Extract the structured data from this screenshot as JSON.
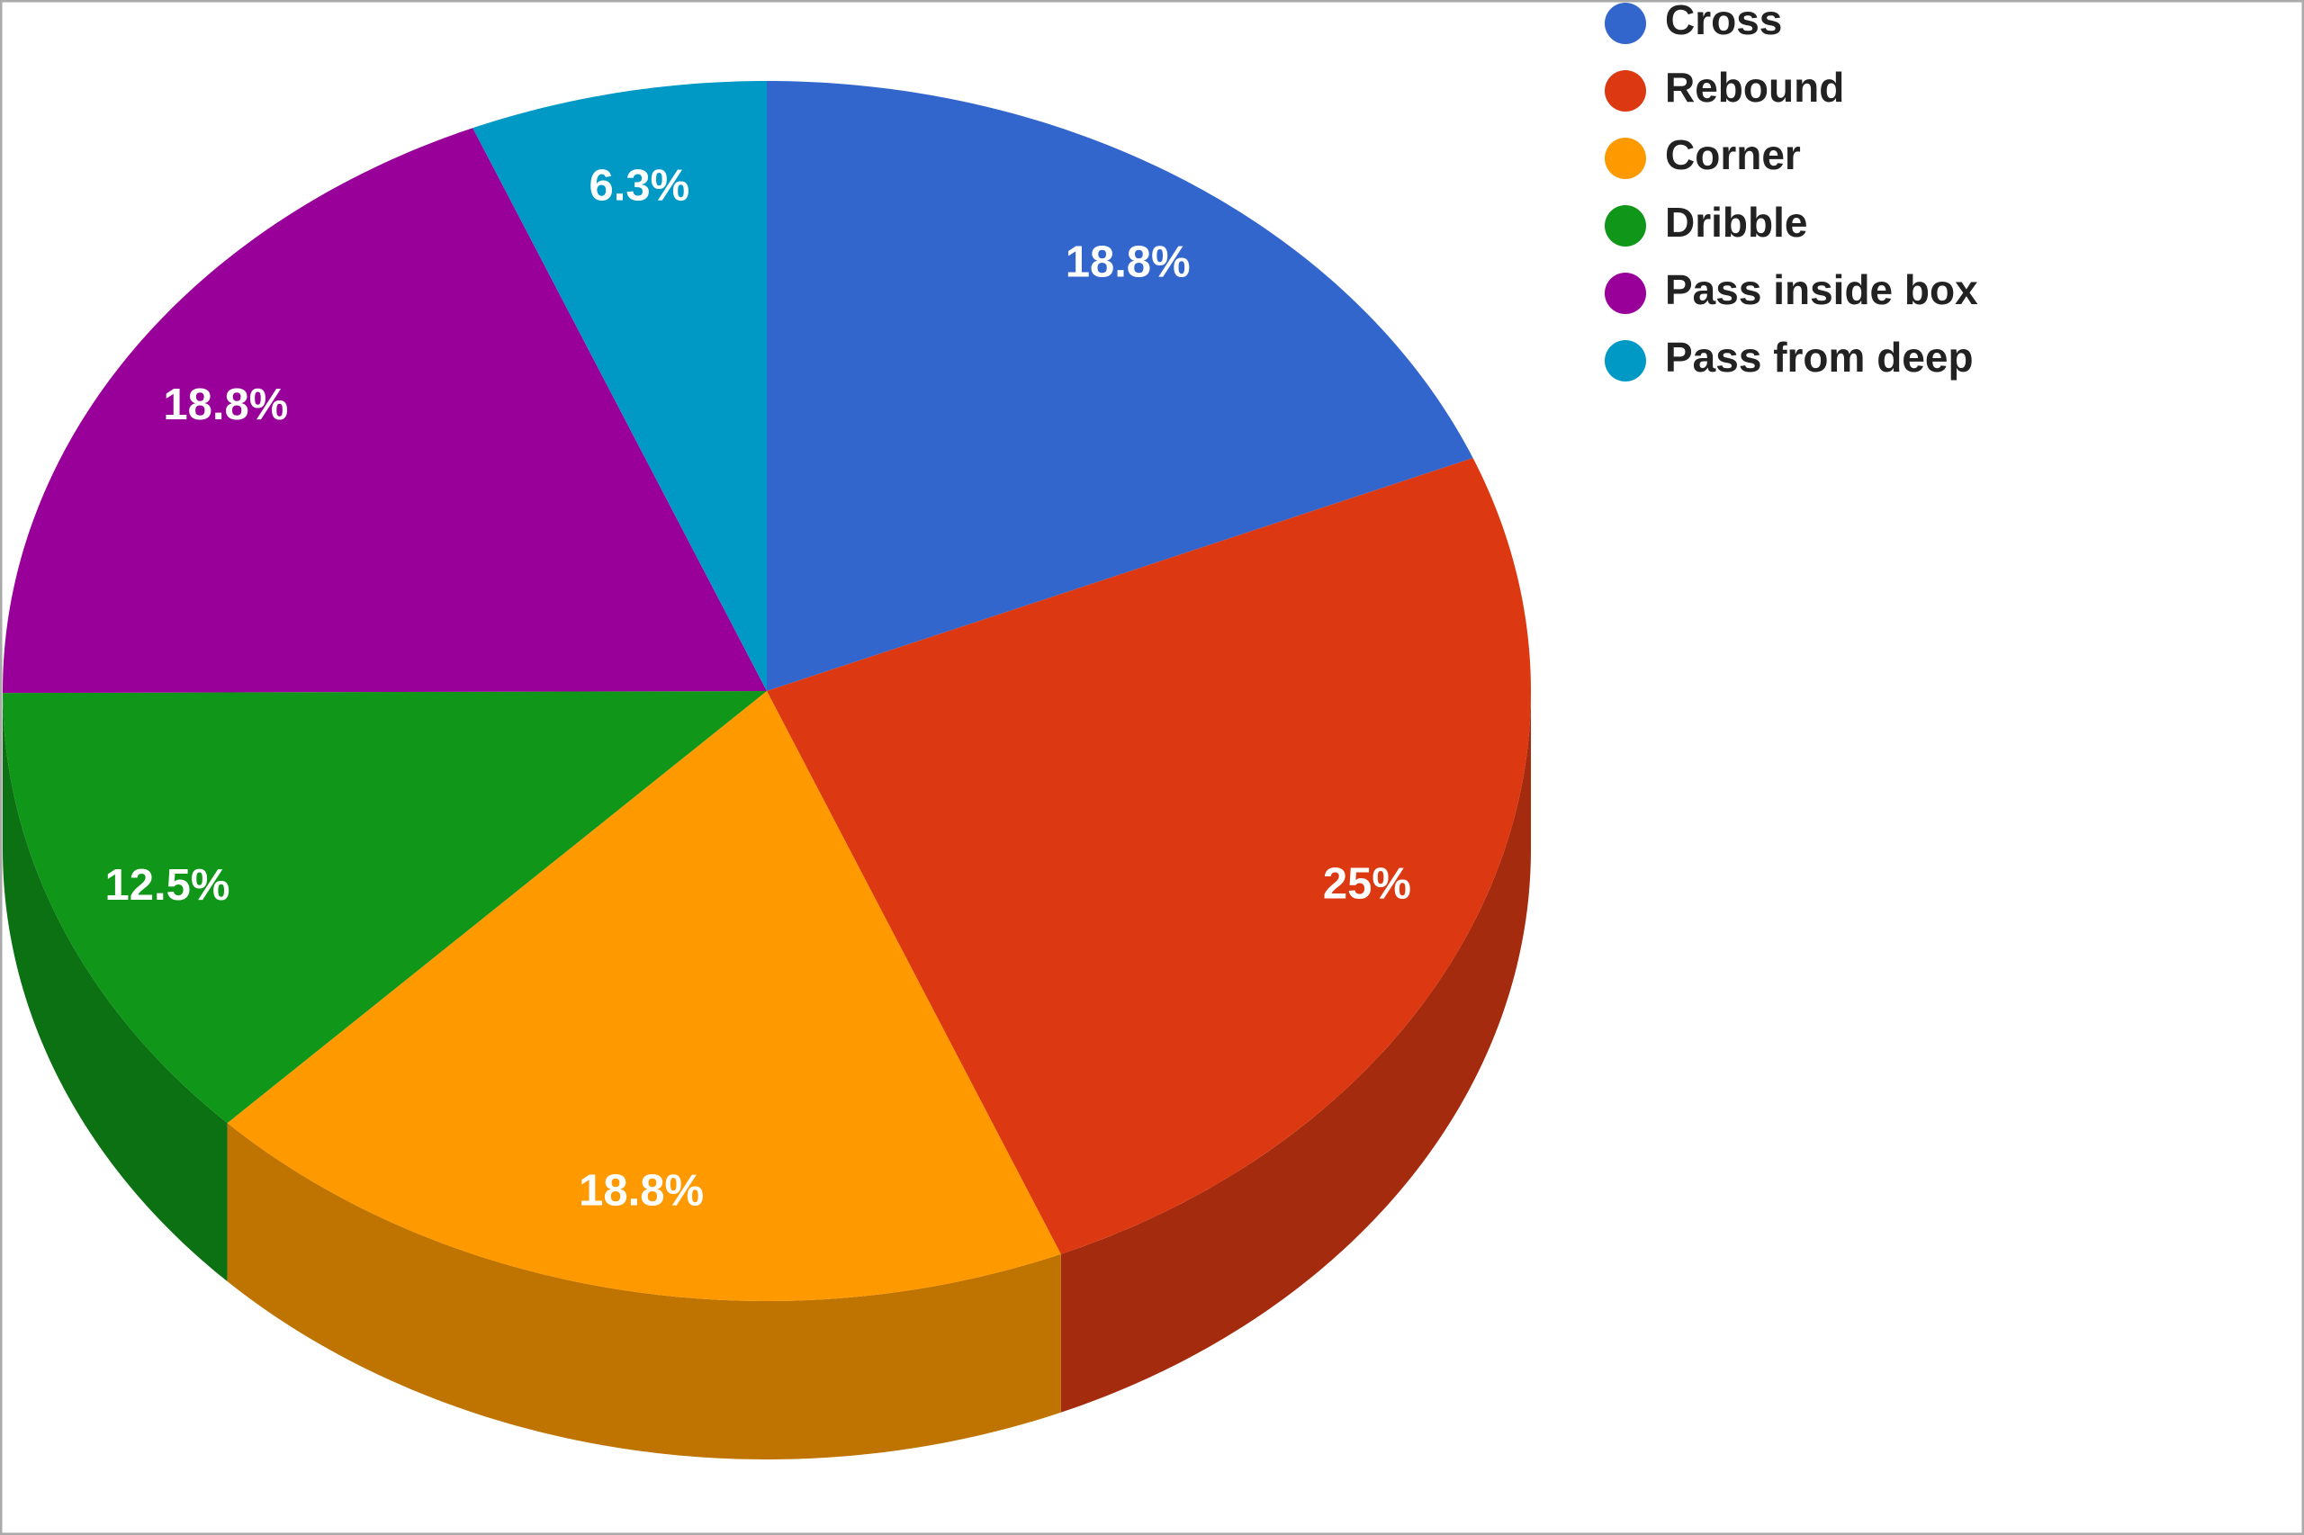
{
  "chart_data": {
    "type": "pie",
    "three_d": true,
    "legend": "top-right",
    "categories": [
      "Cross",
      "Rebound",
      "Corner",
      "Dribble",
      "Pass inside box",
      "Pass from deep"
    ],
    "values": [
      18.8,
      25,
      18.8,
      12.5,
      18.8,
      6.3
    ],
    "value_labels": [
      "18.8%",
      "25%",
      "18.8%",
      "12.5%",
      "18.8%",
      "6.3%"
    ],
    "colors": [
      "#3366cc",
      "#dc3912",
      "#ff9900",
      "#109618",
      "#990099",
      "#0099c6"
    ]
  }
}
